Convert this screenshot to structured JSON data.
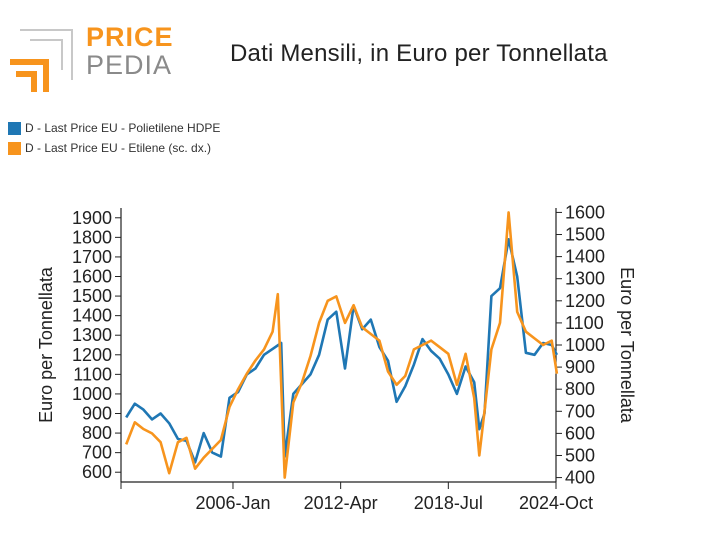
{
  "brand": {
    "line1": "PRICE",
    "line2": "PEDIA",
    "accent": "#f7941d",
    "grey": "#8a8a8a"
  },
  "chart_data": {
    "type": "line",
    "title": "Dati Mensili, in Euro per Tonnellata",
    "x_tick_labels": [
      "2006-Jan",
      "2012-Apr",
      "2018-Jul",
      "2024-Oct"
    ],
    "y_left": {
      "label": "Euro per Tonnellata",
      "range": [
        550,
        1950
      ],
      "ticks": [
        600,
        700,
        800,
        900,
        1000,
        1100,
        1200,
        1300,
        1400,
        1500,
        1600,
        1700,
        1800,
        1900
      ]
    },
    "y_right": {
      "label": "Euro per Tonnellata",
      "range": [
        380,
        1620
      ],
      "ticks": [
        400,
        500,
        600,
        700,
        800,
        900,
        1000,
        1100,
        1200,
        1300,
        1400,
        1500,
        1600
      ]
    },
    "series": [
      {
        "name": "D - Last Price EU - Polietilene HDPE",
        "axis": "left",
        "color": "#1f77b4",
        "points": [
          [
            1999.8,
            880
          ],
          [
            2000.3,
            950
          ],
          [
            2000.8,
            920
          ],
          [
            2001.3,
            870
          ],
          [
            2001.8,
            900
          ],
          [
            2002.3,
            850
          ],
          [
            2002.8,
            770
          ],
          [
            2003.3,
            760
          ],
          [
            2003.8,
            650
          ],
          [
            2004.3,
            800
          ],
          [
            2004.8,
            700
          ],
          [
            2005.3,
            680
          ],
          [
            2005.8,
            980
          ],
          [
            2006.3,
            1010
          ],
          [
            2006.8,
            1100
          ],
          [
            2007.3,
            1130
          ],
          [
            2007.8,
            1200
          ],
          [
            2008.3,
            1230
          ],
          [
            2008.8,
            1260
          ],
          [
            2009.0,
            680
          ],
          [
            2009.5,
            1000
          ],
          [
            2010.0,
            1050
          ],
          [
            2010.5,
            1100
          ],
          [
            2011.0,
            1200
          ],
          [
            2011.5,
            1380
          ],
          [
            2012.0,
            1420
          ],
          [
            2012.5,
            1130
          ],
          [
            2013.0,
            1450
          ],
          [
            2013.5,
            1330
          ],
          [
            2014.0,
            1380
          ],
          [
            2014.5,
            1240
          ],
          [
            2015.0,
            1170
          ],
          [
            2015.5,
            960
          ],
          [
            2016.0,
            1040
          ],
          [
            2016.5,
            1150
          ],
          [
            2017.0,
            1280
          ],
          [
            2017.5,
            1220
          ],
          [
            2018.0,
            1180
          ],
          [
            2018.5,
            1100
          ],
          [
            2019.0,
            1000
          ],
          [
            2019.5,
            1140
          ],
          [
            2020.0,
            1060
          ],
          [
            2020.3,
            820
          ],
          [
            2020.6,
            900
          ],
          [
            2021.0,
            1500
          ],
          [
            2021.5,
            1540
          ],
          [
            2022.0,
            1790
          ],
          [
            2022.5,
            1600
          ],
          [
            2023.0,
            1210
          ],
          [
            2023.5,
            1200
          ],
          [
            2024.0,
            1260
          ],
          [
            2024.5,
            1250
          ],
          [
            2024.8,
            1200
          ]
        ]
      },
      {
        "name": "D - Last Price EU - Etilene (sc. dx.)",
        "axis": "right",
        "color": "#f7941d",
        "points": [
          [
            1999.8,
            550
          ],
          [
            2000.3,
            650
          ],
          [
            2000.8,
            620
          ],
          [
            2001.3,
            600
          ],
          [
            2001.8,
            560
          ],
          [
            2002.3,
            420
          ],
          [
            2002.8,
            560
          ],
          [
            2003.3,
            580
          ],
          [
            2003.8,
            440
          ],
          [
            2004.3,
            490
          ],
          [
            2004.8,
            530
          ],
          [
            2005.3,
            570
          ],
          [
            2005.8,
            720
          ],
          [
            2006.3,
            800
          ],
          [
            2006.8,
            870
          ],
          [
            2007.3,
            930
          ],
          [
            2007.8,
            980
          ],
          [
            2008.3,
            1060
          ],
          [
            2008.6,
            1230
          ],
          [
            2009.0,
            400
          ],
          [
            2009.5,
            740
          ],
          [
            2010.0,
            830
          ],
          [
            2010.5,
            950
          ],
          [
            2011.0,
            1100
          ],
          [
            2011.5,
            1200
          ],
          [
            2012.0,
            1220
          ],
          [
            2012.5,
            1100
          ],
          [
            2013.0,
            1180
          ],
          [
            2013.5,
            1080
          ],
          [
            2014.0,
            1050
          ],
          [
            2014.5,
            1020
          ],
          [
            2015.0,
            880
          ],
          [
            2015.5,
            820
          ],
          [
            2016.0,
            860
          ],
          [
            2016.5,
            980
          ],
          [
            2017.0,
            1000
          ],
          [
            2017.5,
            1020
          ],
          [
            2018.0,
            990
          ],
          [
            2018.5,
            960
          ],
          [
            2019.0,
            820
          ],
          [
            2019.5,
            960
          ],
          [
            2020.0,
            760
          ],
          [
            2020.3,
            500
          ],
          [
            2020.6,
            700
          ],
          [
            2021.0,
            980
          ],
          [
            2021.5,
            1100
          ],
          [
            2022.0,
            1600
          ],
          [
            2022.5,
            1150
          ],
          [
            2023.0,
            1060
          ],
          [
            2023.5,
            1030
          ],
          [
            2024.0,
            1000
          ],
          [
            2024.5,
            1020
          ],
          [
            2024.8,
            870
          ]
        ]
      }
    ]
  }
}
